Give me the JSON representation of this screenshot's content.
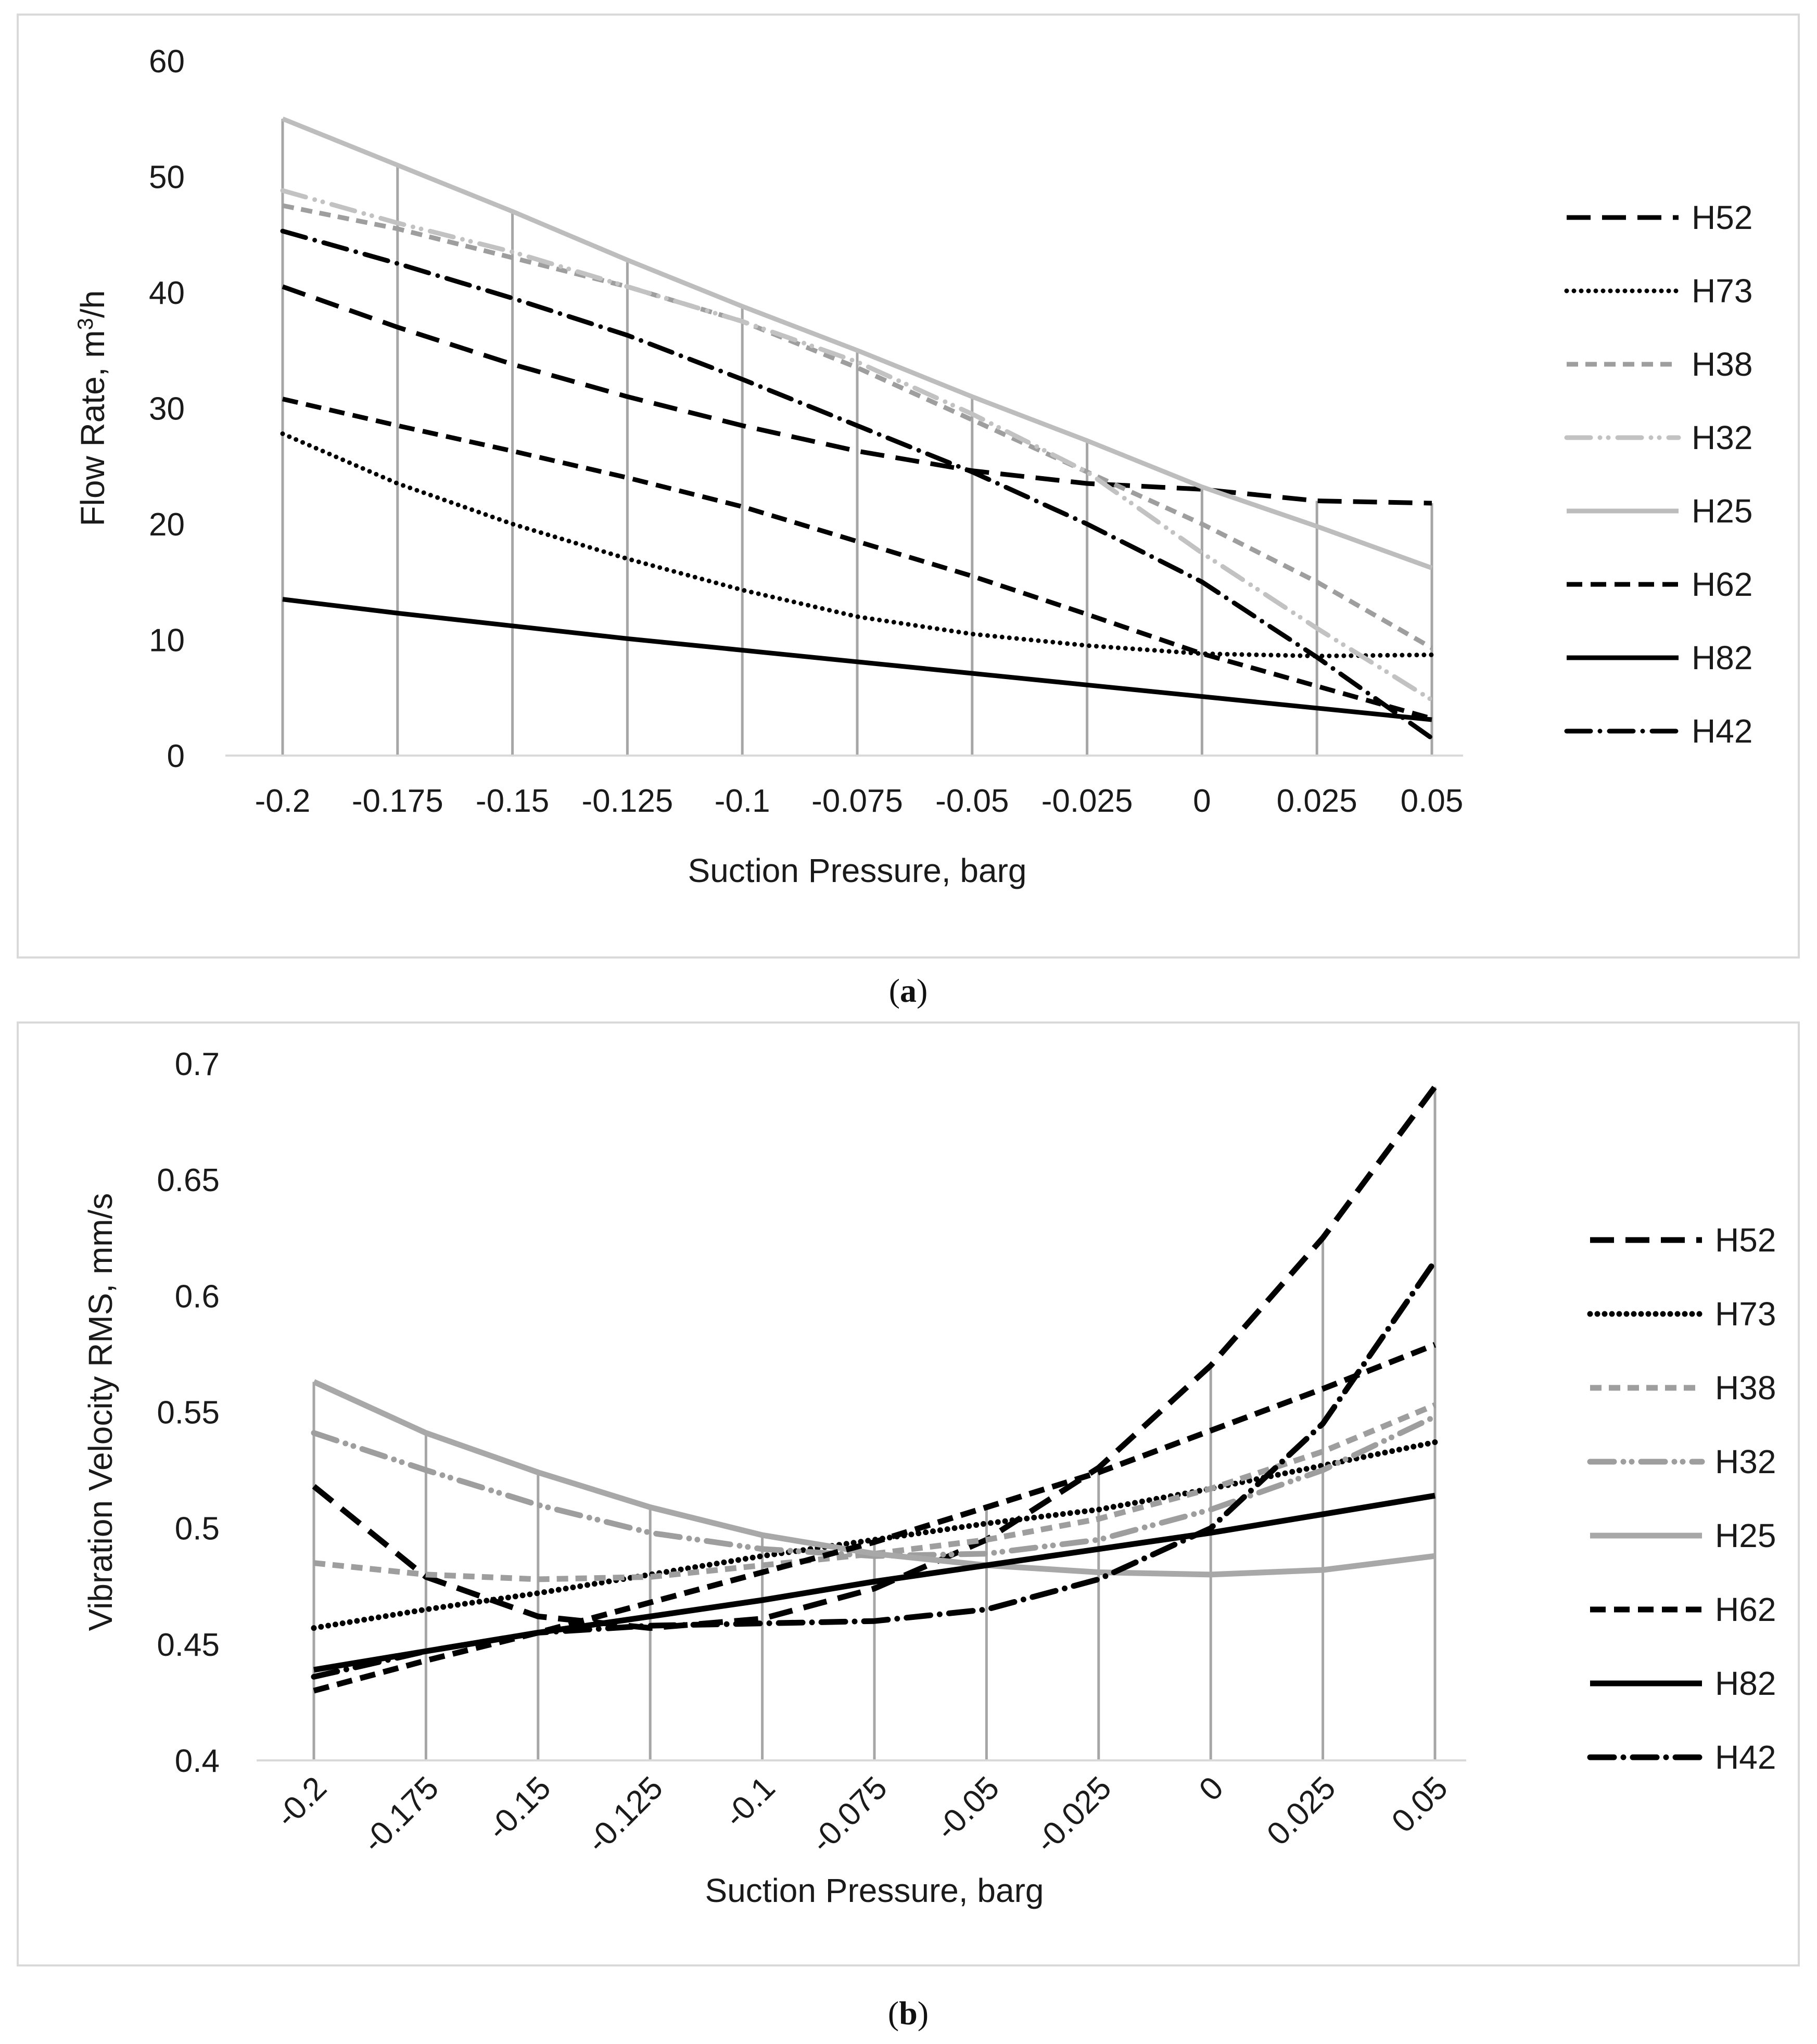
{
  "chart_data": [
    {
      "id": "a",
      "type": "line",
      "caption_letter": "a",
      "x": [
        -0.2,
        -0.175,
        -0.15,
        -0.125,
        -0.1,
        -0.075,
        -0.05,
        -0.025,
        0,
        0.025,
        0.05
      ],
      "x_tick_labels": [
        "-0.2",
        "-0.175",
        "-0.15",
        "-0.125",
        "-0.1",
        "-0.075",
        "-0.05",
        "-0.025",
        "0",
        "0.025",
        "0.05"
      ],
      "y_tick_labels": [
        "0",
        "10",
        "20",
        "30",
        "40",
        "50",
        "60"
      ],
      "y_ticks": [
        0,
        10,
        20,
        30,
        40,
        50,
        60
      ],
      "ylim": [
        0,
        60
      ],
      "xlabel": "Suction Pressure, barg",
      "ylabel_main": "Flow Rate, m",
      "ylabel_sup": "3",
      "ylabel_tail": "/h",
      "legend_position": "right",
      "series": [
        {
          "name": "H52",
          "style": "dash-long",
          "color": "#000000",
          "values": [
            40.5,
            37.0,
            33.8,
            31.0,
            28.5,
            26.3,
            24.6,
            23.5,
            23.0,
            22.0,
            21.8
          ]
        },
        {
          "name": "H73",
          "style": "dot",
          "color": "#000000",
          "values": [
            27.8,
            23.5,
            20.0,
            17.0,
            14.3,
            12.0,
            10.5,
            9.5,
            8.8,
            8.6,
            8.7
          ]
        },
        {
          "name": "H38",
          "style": "dash-short",
          "color": "#9e9e9e",
          "values": [
            47.5,
            45.5,
            43.0,
            40.5,
            37.5,
            33.5,
            29.0,
            24.5,
            20.0,
            15.0,
            9.3
          ]
        },
        {
          "name": "H32",
          "style": "dash-dot-dot",
          "color": "#c2c2c2",
          "values": [
            48.8,
            46.0,
            43.5,
            40.5,
            37.5,
            34.0,
            29.5,
            24.5,
            17.5,
            11.0,
            4.8
          ]
        },
        {
          "name": "H25",
          "style": "solid",
          "color": "#bdbdbd",
          "values": [
            55.0,
            51.0,
            47.0,
            42.8,
            38.8,
            35.0,
            31.0,
            27.2,
            23.2,
            19.8,
            16.2
          ]
        },
        {
          "name": "H62",
          "style": "dash-medium",
          "color": "#000000",
          "values": [
            30.8,
            28.5,
            26.3,
            24.0,
            21.5,
            18.5,
            15.5,
            12.2,
            8.8,
            6.0,
            3.2
          ]
        },
        {
          "name": "H82",
          "style": "solid",
          "color": "#000000",
          "values": [
            13.5,
            12.3,
            11.2,
            10.1,
            9.1,
            8.1,
            7.1,
            6.1,
            5.1,
            4.1,
            3.1
          ]
        },
        {
          "name": "H42",
          "style": "dash-dot",
          "color": "#000000",
          "values": [
            45.3,
            42.5,
            39.5,
            36.3,
            32.5,
            28.5,
            24.5,
            20.0,
            15.0,
            8.5,
            1.5
          ]
        }
      ]
    },
    {
      "id": "b",
      "type": "line",
      "caption_letter": "b",
      "x": [
        -0.2,
        -0.175,
        -0.15,
        -0.125,
        -0.1,
        -0.075,
        -0.05,
        -0.025,
        0,
        0.025,
        0.05
      ],
      "x_tick_labels": [
        "-0.2",
        "-0.175",
        "-0.15",
        "-0.125",
        "-0.1",
        "-0.075",
        "-0.05",
        "-0.025",
        "0",
        "0.025",
        "0.05"
      ],
      "y_tick_labels": [
        "0.4",
        "0.45",
        "0.5",
        "0.55",
        "0.6",
        "0.65",
        "0.7"
      ],
      "y_ticks": [
        0.4,
        0.45,
        0.5,
        0.55,
        0.6,
        0.65,
        0.7
      ],
      "ylim": [
        0.4,
        0.7
      ],
      "xlabel": "Suction Pressure, barg",
      "ylabel_main": "Vibration Velocity RMS, mm/s",
      "legend_position": "right",
      "series": [
        {
          "name": "H52",
          "style": "dash-long",
          "color": "#000000",
          "values": [
            0.518,
            0.479,
            0.462,
            0.457,
            0.461,
            0.474,
            0.495,
            0.526,
            0.57,
            0.625,
            0.69
          ]
        },
        {
          "name": "H73",
          "style": "dot",
          "color": "#000000",
          "values": [
            0.457,
            0.465,
            0.472,
            0.48,
            0.488,
            0.495,
            0.502,
            0.508,
            0.517,
            0.527,
            0.537
          ]
        },
        {
          "name": "H38",
          "style": "dash-short",
          "color": "#9e9e9e",
          "values": [
            0.485,
            0.48,
            0.478,
            0.479,
            0.484,
            0.489,
            0.495,
            0.504,
            0.517,
            0.533,
            0.553
          ]
        },
        {
          "name": "H32",
          "style": "dash-dot-dot",
          "color": "#9e9e9e",
          "values": [
            0.541,
            0.525,
            0.51,
            0.498,
            0.491,
            0.488,
            0.489,
            0.495,
            0.508,
            0.525,
            0.548
          ]
        },
        {
          "name": "H25",
          "style": "solid",
          "color": "#a8a8a8",
          "values": [
            0.563,
            0.541,
            0.524,
            0.509,
            0.497,
            0.489,
            0.484,
            0.481,
            0.48,
            0.482,
            0.488
          ]
        },
        {
          "name": "H62",
          "style": "dash-medium",
          "color": "#000000",
          "values": [
            0.43,
            0.443,
            0.455,
            0.468,
            0.481,
            0.494,
            0.509,
            0.524,
            0.542,
            0.56,
            0.579
          ]
        },
        {
          "name": "H82",
          "style": "solid",
          "color": "#000000",
          "values": [
            0.439,
            0.447,
            0.455,
            0.462,
            0.469,
            0.477,
            0.484,
            0.491,
            0.498,
            0.506,
            0.514
          ]
        },
        {
          "name": "H42",
          "style": "dash-dot",
          "color": "#000000",
          "values": [
            0.436,
            0.447,
            0.455,
            0.458,
            0.459,
            0.46,
            0.465,
            0.478,
            0.5,
            0.545,
            0.615
          ]
        }
      ]
    }
  ]
}
